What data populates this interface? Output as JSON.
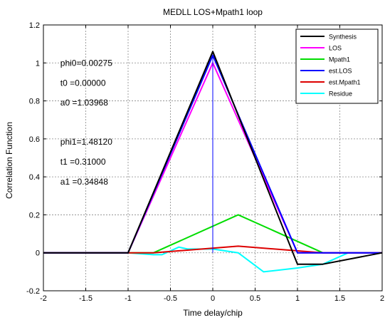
{
  "chart_data": {
    "type": "line",
    "title": "MEDLL LOS+Mpath1 loop",
    "xlabel": "Time delay/chip",
    "ylabel": "Correlation Function",
    "xlim": [
      -2,
      2
    ],
    "ylim": [
      -0.2,
      1.2
    ],
    "xticks": [
      -2,
      -1.5,
      -1,
      -0.5,
      0,
      0.5,
      1,
      1.5,
      2
    ],
    "xtick_labels": [
      "-2",
      "-1.5",
      "-1",
      "-0.5",
      "0",
      "0.5",
      "1",
      "1.5",
      "2"
    ],
    "yticks": [
      -0.2,
      0,
      0.2,
      0.4,
      0.6,
      0.8,
      1,
      1.2
    ],
    "ytick_labels": [
      "-0.2",
      "0",
      "0.2",
      "0.4",
      "0.6",
      "0.8",
      "1",
      "1.2"
    ],
    "grid": true,
    "legend_position": "top-right",
    "series": [
      {
        "name": "Synthesis",
        "color": "#000000",
        "x": [
          -2,
          -1,
          0,
          1,
          1.3,
          2
        ],
        "y": [
          0,
          0,
          1.06,
          -0.06,
          -0.06,
          0
        ]
      },
      {
        "name": "LOS",
        "color": "#ff00ff",
        "x": [
          -2,
          -1,
          0,
          1,
          2
        ],
        "y": [
          0,
          0,
          1.0,
          0,
          0
        ]
      },
      {
        "name": "Mpath1",
        "color": "#00dd00",
        "x": [
          -2,
          -0.7,
          0.3,
          1.3,
          2
        ],
        "y": [
          0,
          0,
          0.2,
          0,
          0
        ]
      },
      {
        "name": "est.LOS",
        "color": "#0000ff",
        "x": [
          -2,
          -1,
          0,
          1,
          2
        ],
        "y": [
          0,
          0,
          1.04,
          0,
          0
        ]
      },
      {
        "name": "est.Mpath1",
        "color": "#dd0000",
        "x": [
          -2,
          -0.7,
          0.3,
          1.3,
          2
        ],
        "y": [
          0,
          0,
          0.035,
          0,
          0
        ]
      },
      {
        "name": "Residue",
        "color": "#00ffff",
        "x": [
          -2,
          -1.5,
          -1,
          -0.7,
          -0.6,
          -0.4,
          -0.3,
          0,
          0.3,
          0.6,
          1,
          1.3,
          1.6,
          2
        ],
        "y": [
          0,
          0,
          0,
          -0.01,
          -0.01,
          0.03,
          0.02,
          0.02,
          0,
          -0.1,
          -0.08,
          -0.06,
          0,
          0
        ]
      }
    ],
    "vertical_marker": {
      "x": 0,
      "y_from": 0,
      "y_to": 1.04,
      "color": "#0000ff"
    },
    "annotations": [
      {
        "text": "phi0=0.00275",
        "x": -1.8,
        "y": 0.985
      },
      {
        "text": "t0  =0.00000",
        "x": -1.8,
        "y": 0.88
      },
      {
        "text": "a0  =1.03968",
        "x": -1.8,
        "y": 0.775
      },
      {
        "text": "phi1=1.48120",
        "x": -1.8,
        "y": 0.57
      },
      {
        "text": "t1  =0.31000",
        "x": -1.8,
        "y": 0.465
      },
      {
        "text": "a1  =0.34848",
        "x": -1.8,
        "y": 0.36
      }
    ]
  }
}
